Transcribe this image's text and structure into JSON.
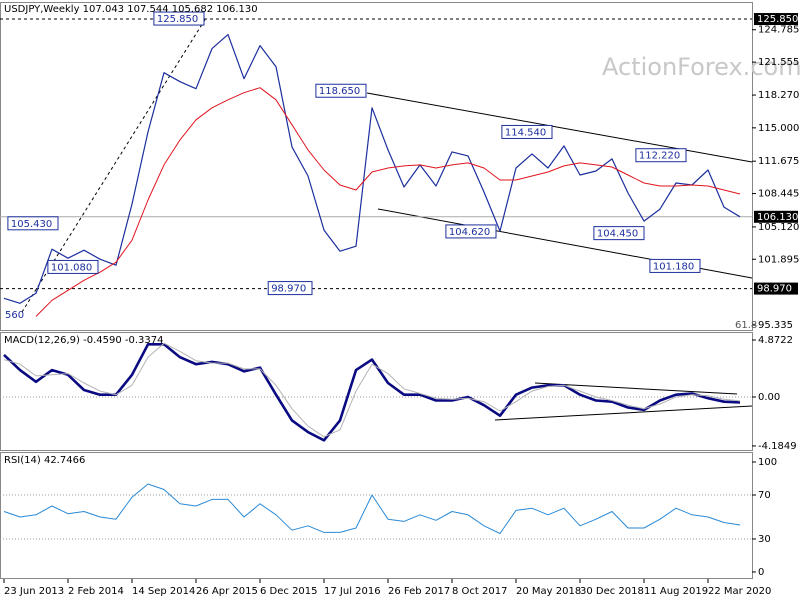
{
  "chart_data": [
    {
      "type": "line",
      "title": "USDJPY,Weekly  107.043 107.544 105.682 106.130",
      "watermark": "ActionForex.com",
      "notes": [
        "560",
        "61.8"
      ],
      "x": [
        "2013-06-23",
        "2013-08-18",
        "2013-10-13",
        "2013-12-08",
        "2014-02-02",
        "2014-03-30",
        "2014-05-25",
        "2014-07-20",
        "2014-09-14",
        "2014-11-09",
        "2015-01-04",
        "2015-03-01",
        "2015-04-26",
        "2015-06-21",
        "2015-08-16",
        "2015-10-11",
        "2015-12-06",
        "2016-01-31",
        "2016-03-27",
        "2016-05-22",
        "2016-07-17",
        "2016-09-11",
        "2016-11-06",
        "2017-01-01",
        "2017-02-26",
        "2017-04-23",
        "2017-06-18",
        "2017-08-13",
        "2017-10-08",
        "2017-12-03",
        "2018-01-28",
        "2018-03-25",
        "2018-05-20",
        "2018-07-15",
        "2018-09-09",
        "2018-11-04",
        "2018-12-30",
        "2019-02-24",
        "2019-04-21",
        "2019-06-16",
        "2019-08-11",
        "2019-10-06",
        "2019-12-01",
        "2020-01-26",
        "2020-03-22",
        "2020-05-17",
        "2020-07-12"
      ],
      "series": [
        {
          "color": "#1c2f9e",
          "width": 1.2,
          "values": [
            98,
            97.5,
            98.5,
            102.9,
            102,
            102.8,
            101.9,
            101.3,
            107.4,
            114.6,
            120.5,
            119.6,
            118.9,
            122.9,
            124.3,
            119.9,
            123.2,
            121.1,
            113.1,
            110.2,
            104.8,
            102.7,
            103.2,
            117,
            112.8,
            109.1,
            111.3,
            109.2,
            112.6,
            112.2,
            108.6,
            104.7,
            111,
            112.4,
            111,
            113.2,
            110.3,
            110.7,
            111.9,
            108.5,
            105.7,
            106.9,
            109.5,
            109.3,
            110.8,
            107.1,
            106.13
          ]
        },
        {
          "color": "#e0141e",
          "width": 1,
          "values": [
            null,
            null,
            96.2,
            97.8,
            98.8,
            99.8,
            100.6,
            101.6,
            103.8,
            107.8,
            111.3,
            113.8,
            115.8,
            117,
            117.8,
            118.5,
            119,
            117.8,
            115.3,
            112.8,
            110.8,
            109.3,
            108.8,
            110.6,
            111,
            111.2,
            111.3,
            111,
            111.3,
            111.5,
            111,
            109.8,
            109.8,
            110.2,
            110.6,
            111.2,
            111.5,
            111.3,
            111.1,
            110.3,
            109.5,
            109.2,
            109.2,
            109.3,
            109.2,
            108.8,
            108.4
          ]
        }
      ],
      "ylim": [
        94.84,
        127.45
      ],
      "yticks": [
        {
          "value": 95.335,
          "label": "95.335"
        },
        {
          "value": 101.895,
          "label": "101.895"
        },
        {
          "value": 105.12,
          "label": "105.120"
        },
        {
          "value": 108.445,
          "label": "108.445"
        },
        {
          "value": 111.675,
          "label": "111.675"
        },
        {
          "value": 115,
          "label": "115.000"
        },
        {
          "value": 118.27,
          "label": "118.270"
        },
        {
          "value": 121.555,
          "label": "121.555"
        },
        {
          "value": 124.785,
          "label": "124.785"
        }
      ],
      "levels": [
        {
          "value": 125.85,
          "label": "125.850",
          "style": "dashed"
        },
        {
          "value": 98.97,
          "label": "98.970",
          "style": "dashed"
        },
        {
          "value": 106.13,
          "label": "106.130",
          "style": "solid"
        }
      ],
      "annotations": [
        {
          "value": 125.85,
          "label": "125.850",
          "x": "2015-06-07"
        },
        {
          "value": 118.65,
          "label": "118.650",
          "x": "2016-12-25"
        },
        {
          "value": 114.54,
          "label": "114.540",
          "x": "2018-10-07"
        },
        {
          "value": 112.22,
          "label": "112.220",
          "x": "2020-01-19"
        },
        {
          "value": 105.43,
          "label": "105.430",
          "x": "2014-01-12"
        },
        {
          "value": 101.08,
          "label": "101.080",
          "x": "2014-06-01"
        },
        {
          "value": 98.97,
          "label": "98.970",
          "x": "2016-06-19"
        },
        {
          "value": 104.62,
          "label": "104.620",
          "x": "2018-03-25"
        },
        {
          "value": 104.45,
          "label": "104.450",
          "x": "2019-08-25"
        },
        {
          "value": 101.18,
          "label": "101.180",
          "x": "2020-03-08"
        }
      ],
      "xticks": [
        {
          "value": "2013-06-23",
          "label": "23 Jun 2013"
        },
        {
          "value": "2014-02-02",
          "label": "2 Feb 2014"
        },
        {
          "value": "2014-09-14",
          "label": "14 Sep 2014"
        },
        {
          "value": "2015-04-26",
          "label": "26 Apr 2015"
        },
        {
          "value": "2015-12-06",
          "label": "6 Dec 2015"
        },
        {
          "value": "2016-07-17",
          "label": "17 Jul 2016"
        },
        {
          "value": "2017-02-26",
          "label": "26 Feb 2017"
        },
        {
          "value": "2017-10-08",
          "label": "8 Oct 2017"
        },
        {
          "value": "2018-05-20",
          "label": "20 May 2018"
        },
        {
          "value": "2018-12-30",
          "label": "30 Dec 2018"
        },
        {
          "value": "2019-08-11",
          "label": "11 Aug 2019"
        },
        {
          "value": "2020-03-22",
          "label": "22 Mar 2020"
        }
      ]
    },
    {
      "type": "line",
      "title": "MACD(12,26,9) -0.4590 -0.3374",
      "series": [
        {
          "color": "#0a0a82",
          "width": 2.6,
          "values": [
            3.6,
            2.3,
            1.3,
            2.3,
            1.9,
            0.6,
            0.2,
            0.2,
            1.9,
            4.5,
            4.5,
            3.4,
            2.8,
            3,
            2.8,
            2.2,
            2.5,
            0.2,
            -2,
            -3,
            -3.7,
            -2,
            2.3,
            3.2,
            1.2,
            0.2,
            0.2,
            -0.3,
            -0.3,
            0,
            -0.7,
            -1.6,
            0.2,
            0.8,
            1,
            1,
            0.2,
            -0.3,
            -0.4,
            -0.9,
            -1.1,
            -0.3,
            0.2,
            0.3,
            -0.1,
            -0.4,
            -0.459
          ]
        },
        {
          "color": "#b4b4b4",
          "width": 1,
          "values": [
            3.2,
            2.8,
            1.8,
            1.9,
            2,
            1.2,
            0.5,
            0.2,
            1,
            3.4,
            4.6,
            3.9,
            3.1,
            2.9,
            2.9,
            2.4,
            2.4,
            1,
            -1,
            -2.5,
            -3.4,
            -2.8,
            0.5,
            2.8,
            2,
            0.7,
            0.3,
            -0.1,
            -0.2,
            -0.1,
            -0.4,
            -1.2,
            -0.4,
            0.5,
            0.9,
            1,
            0.5,
            0,
            -0.3,
            -0.7,
            -1,
            -0.6,
            0,
            0.2,
            0.1,
            -0.2,
            -0.3374
          ]
        }
      ],
      "ylim": [
        -4.53,
        5.47
      ],
      "yticks": [
        4.8722,
        {
          "value": 0,
          "label": "0.00"
        },
        -4.1849
      ],
      "grid_values": [
        0
      ]
    },
    {
      "type": "line",
      "title": "RSI(14) 42.7466",
      "series": [
        {
          "color": "#2a8ad6",
          "width": 1,
          "values": [
            55,
            50,
            52,
            60,
            53,
            55,
            50,
            48,
            68,
            80,
            75,
            62,
            60,
            66,
            66,
            50,
            62,
            52,
            38,
            42,
            36,
            36,
            40,
            70,
            48,
            46,
            52,
            47,
            55,
            52,
            42,
            35,
            56,
            58,
            52,
            58,
            42,
            48,
            55,
            40,
            40,
            48,
            58,
            52,
            50,
            45,
            42.7466
          ]
        }
      ],
      "ylim": [
        -5.5,
        108.2
      ],
      "yticks": [
        100,
        70,
        30,
        0
      ],
      "grid_values": [
        70,
        30
      ]
    }
  ]
}
